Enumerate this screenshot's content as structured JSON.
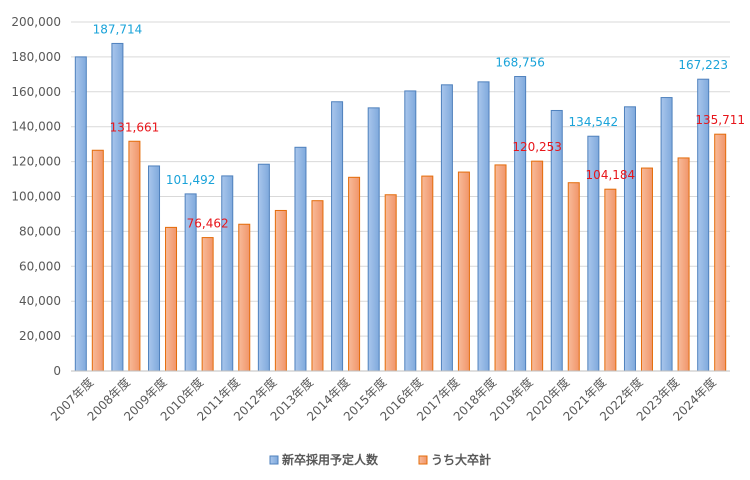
{
  "chart_data": {
    "type": "bar",
    "title": "",
    "xlabel": "",
    "ylabel": "",
    "ylim": [
      0,
      200000
    ],
    "yticks": [
      0,
      20000,
      40000,
      60000,
      80000,
      100000,
      120000,
      140000,
      160000,
      180000,
      200000
    ],
    "ytick_labels": [
      "0",
      "20,000",
      "40,000",
      "60,000",
      "80,000",
      "100,000",
      "120,000",
      "140,000",
      "160,000",
      "180,000",
      "200,000"
    ],
    "grid": true,
    "legend_position": "bottom",
    "categories": [
      "2007年度",
      "2008年度",
      "2009年度",
      "2010年度",
      "2011年度",
      "2012年度",
      "2013年度",
      "2014年度",
      "2015年度",
      "2016年度",
      "2017年度",
      "2018年度",
      "2019年度",
      "2020年度",
      "2021年度",
      "2022年度",
      "2023年度",
      "2024年度"
    ],
    "series": [
      {
        "name": "新卒採用予定人数",
        "color": "#8db4e2",
        "values": [
          180000,
          187714,
          117500,
          101492,
          111800,
          118500,
          128200,
          154300,
          150800,
          160500,
          164000,
          165700,
          168756,
          149300,
          134542,
          151400,
          156700,
          167223
        ]
      },
      {
        "name": "うち大卒計",
        "color": "#f4a57c",
        "values": [
          126500,
          131661,
          82300,
          76462,
          84100,
          92000,
          97600,
          111000,
          101000,
          111700,
          114000,
          118100,
          120253,
          107900,
          104184,
          116300,
          122100,
          135711
        ]
      }
    ],
    "data_labels": [
      {
        "series": 0,
        "index": 1,
        "text": "187,714"
      },
      {
        "series": 1,
        "index": 1,
        "text": "131,661"
      },
      {
        "series": 0,
        "index": 3,
        "text": "101,492"
      },
      {
        "series": 1,
        "index": 3,
        "text": "76,462"
      },
      {
        "series": 0,
        "index": 12,
        "text": "168,756"
      },
      {
        "series": 1,
        "index": 12,
        "text": "120,253"
      },
      {
        "series": 0,
        "index": 14,
        "text": "134,542"
      },
      {
        "series": 1,
        "index": 14,
        "text": "104,184"
      },
      {
        "series": 0,
        "index": 17,
        "text": "167,223"
      },
      {
        "series": 1,
        "index": 17,
        "text": "135,711"
      }
    ]
  }
}
